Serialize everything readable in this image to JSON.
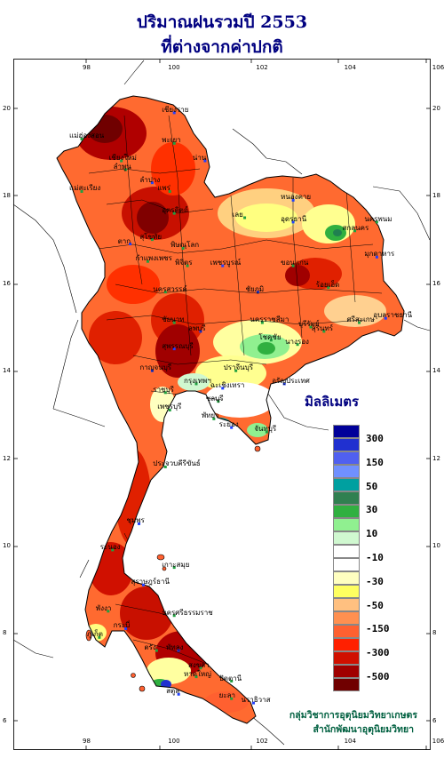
{
  "title": {
    "line1": "ปริมาณฝนรวมปี  2553",
    "line2": "ที่ต่างจากค่าปกติ"
  },
  "axes": {
    "longitude_ticks": [
      "98",
      "100",
      "102",
      "104",
      "106"
    ],
    "latitude_ticks": [
      "20",
      "18",
      "16",
      "14",
      "12",
      "10",
      "8",
      "6"
    ]
  },
  "legend": {
    "title": "มิลลิเมตร",
    "labels": [
      "300",
      "150",
      "50",
      "30",
      "10",
      "-10",
      "-30",
      "-50",
      "-150",
      "-300",
      "-500"
    ],
    "colors": [
      "#000099",
      "#2030d0",
      "#5060f0",
      "#7090ff",
      "#00a0a0",
      "#308050",
      "#30b040",
      "#90f090",
      "#d0f8d0",
      "#ffffff",
      "#ffffff",
      "#ffffc0",
      "#ffff60",
      "#ffc080",
      "#ff9050",
      "#ff6030",
      "#ff2000",
      "#d01000",
      "#a00000",
      "#700000"
    ]
  },
  "provinces": [
    {
      "name": "เชียงราย",
      "lon": 100.0,
      "lat": 19.9
    },
    {
      "name": "แม่ฮ่องสอน",
      "lon": 97.9,
      "lat": 19.3
    },
    {
      "name": "พะเยา",
      "lon": 100.0,
      "lat": 19.2
    },
    {
      "name": "น่าน",
      "lon": 100.7,
      "lat": 18.8
    },
    {
      "name": "เชียงใหม่",
      "lon": 98.8,
      "lat": 18.8
    },
    {
      "name": "ลำพูน",
      "lon": 98.9,
      "lat": 18.6
    },
    {
      "name": "ลำปาง",
      "lon": 99.5,
      "lat": 18.3
    },
    {
      "name": "แพร่",
      "lon": 99.9,
      "lat": 18.1
    },
    {
      "name": "แม่สะเรียง",
      "lon": 97.9,
      "lat": 18.1
    },
    {
      "name": "หนองคาย",
      "lon": 102.7,
      "lat": 17.9
    },
    {
      "name": "อุตรดิตถ์",
      "lon": 100.0,
      "lat": 17.6
    },
    {
      "name": "เลย",
      "lon": 101.6,
      "lat": 17.5
    },
    {
      "name": "อุดรธานี",
      "lon": 102.7,
      "lat": 17.4
    },
    {
      "name": "สกลนคร",
      "lon": 104.1,
      "lat": 17.2
    },
    {
      "name": "นครพนม",
      "lon": 104.6,
      "lat": 17.4
    },
    {
      "name": "ตาก",
      "lon": 99.0,
      "lat": 16.9
    },
    {
      "name": "สุโขทัย",
      "lon": 99.5,
      "lat": 17.0
    },
    {
      "name": "พิษณุโลก",
      "lon": 100.2,
      "lat": 16.8
    },
    {
      "name": "มุกดาหาร",
      "lon": 104.6,
      "lat": 16.6
    },
    {
      "name": "กำแพงเพชร",
      "lon": 99.4,
      "lat": 16.5
    },
    {
      "name": "พิจิตร",
      "lon": 100.3,
      "lat": 16.4
    },
    {
      "name": "เพชรบูรณ์",
      "lon": 101.1,
      "lat": 16.4
    },
    {
      "name": "ขอนแก่น",
      "lon": 102.7,
      "lat": 16.4
    },
    {
      "name": "นครสวรรค์",
      "lon": 99.8,
      "lat": 15.8
    },
    {
      "name": "ชัยภูมิ",
      "lon": 101.9,
      "lat": 15.8
    },
    {
      "name": "ร้อยเอ็ด",
      "lon": 103.5,
      "lat": 15.9
    },
    {
      "name": "ชัยนาท",
      "lon": 100.0,
      "lat": 15.1
    },
    {
      "name": "ลพบุรี",
      "lon": 100.6,
      "lat": 14.9
    },
    {
      "name": "นครราชสีมา",
      "lon": 102.0,
      "lat": 15.1
    },
    {
      "name": "บุรีรัมย์",
      "lon": 103.1,
      "lat": 15.0
    },
    {
      "name": "อุบลราชธานี",
      "lon": 104.8,
      "lat": 15.2
    },
    {
      "name": "สุรินทร์",
      "lon": 103.4,
      "lat": 14.9
    },
    {
      "name": "ศรีสะเกษ",
      "lon": 104.2,
      "lat": 15.1
    },
    {
      "name": "สุพรรณบุรี",
      "lon": 100.0,
      "lat": 14.5
    },
    {
      "name": "โชคชัย",
      "lon": 102.2,
      "lat": 14.7
    },
    {
      "name": "นางรอง",
      "lon": 102.8,
      "lat": 14.6
    },
    {
      "name": "กาญจนบุรี",
      "lon": 99.5,
      "lat": 14.0
    },
    {
      "name": "กรุงเทพฯ",
      "lon": 100.5,
      "lat": 13.7
    },
    {
      "name": "ปราจีนบุรี",
      "lon": 101.4,
      "lat": 14.0
    },
    {
      "name": "อรัญประเทศ",
      "lon": 102.5,
      "lat": 13.7
    },
    {
      "name": "ราชบุรี",
      "lon": 99.8,
      "lat": 13.5
    },
    {
      "name": "ชลบุรี",
      "lon": 101.0,
      "lat": 13.3
    },
    {
      "name": "ฉะเชิงเทรา",
      "lon": 101.1,
      "lat": 13.6
    },
    {
      "name": "เพชรบุรี",
      "lon": 99.9,
      "lat": 13.1
    },
    {
      "name": "พัทยา",
      "lon": 100.9,
      "lat": 12.9
    },
    {
      "name": "ระยอง",
      "lon": 101.3,
      "lat": 12.7
    },
    {
      "name": "จันทบุรี",
      "lon": 102.1,
      "lat": 12.6
    },
    {
      "name": "ประจวบคีรีขันธ์",
      "lon": 99.8,
      "lat": 11.8
    },
    {
      "name": "ชุมพร",
      "lon": 99.2,
      "lat": 10.5
    },
    {
      "name": "ระนอง",
      "lon": 98.6,
      "lat": 9.9
    },
    {
      "name": "เกาะสมุย",
      "lon": 100.0,
      "lat": 9.5
    },
    {
      "name": "สุราษฎร์ธานี",
      "lon": 99.3,
      "lat": 9.1
    },
    {
      "name": "พังงา",
      "lon": 98.5,
      "lat": 8.5
    },
    {
      "name": "นครศรีธรรมราช",
      "lon": 100.0,
      "lat": 8.4
    },
    {
      "name": "กระบี่",
      "lon": 98.9,
      "lat": 8.1
    },
    {
      "name": "ภูเก็ต",
      "lon": 98.3,
      "lat": 7.9
    },
    {
      "name": "ตรัง",
      "lon": 99.6,
      "lat": 7.6
    },
    {
      "name": "พัทลุง",
      "lon": 100.1,
      "lat": 7.6
    },
    {
      "name": "สงขลา",
      "lon": 100.6,
      "lat": 7.2
    },
    {
      "name": "หาดใหญ่",
      "lon": 100.5,
      "lat": 7.0
    },
    {
      "name": "สตูล",
      "lon": 100.1,
      "lat": 6.6
    },
    {
      "name": "ปัตตานี",
      "lon": 101.3,
      "lat": 6.9
    },
    {
      "name": "ยะลา",
      "lon": 101.3,
      "lat": 6.5
    },
    {
      "name": "นราธิวาส",
      "lon": 101.8,
      "lat": 6.4
    }
  ],
  "credit": {
    "line1": "กลุ่มวิชาการอุตุนิยมวิทยาเกษตร",
    "line2": "สำนักพัฒนาอุตุนิยมวิทยา"
  }
}
